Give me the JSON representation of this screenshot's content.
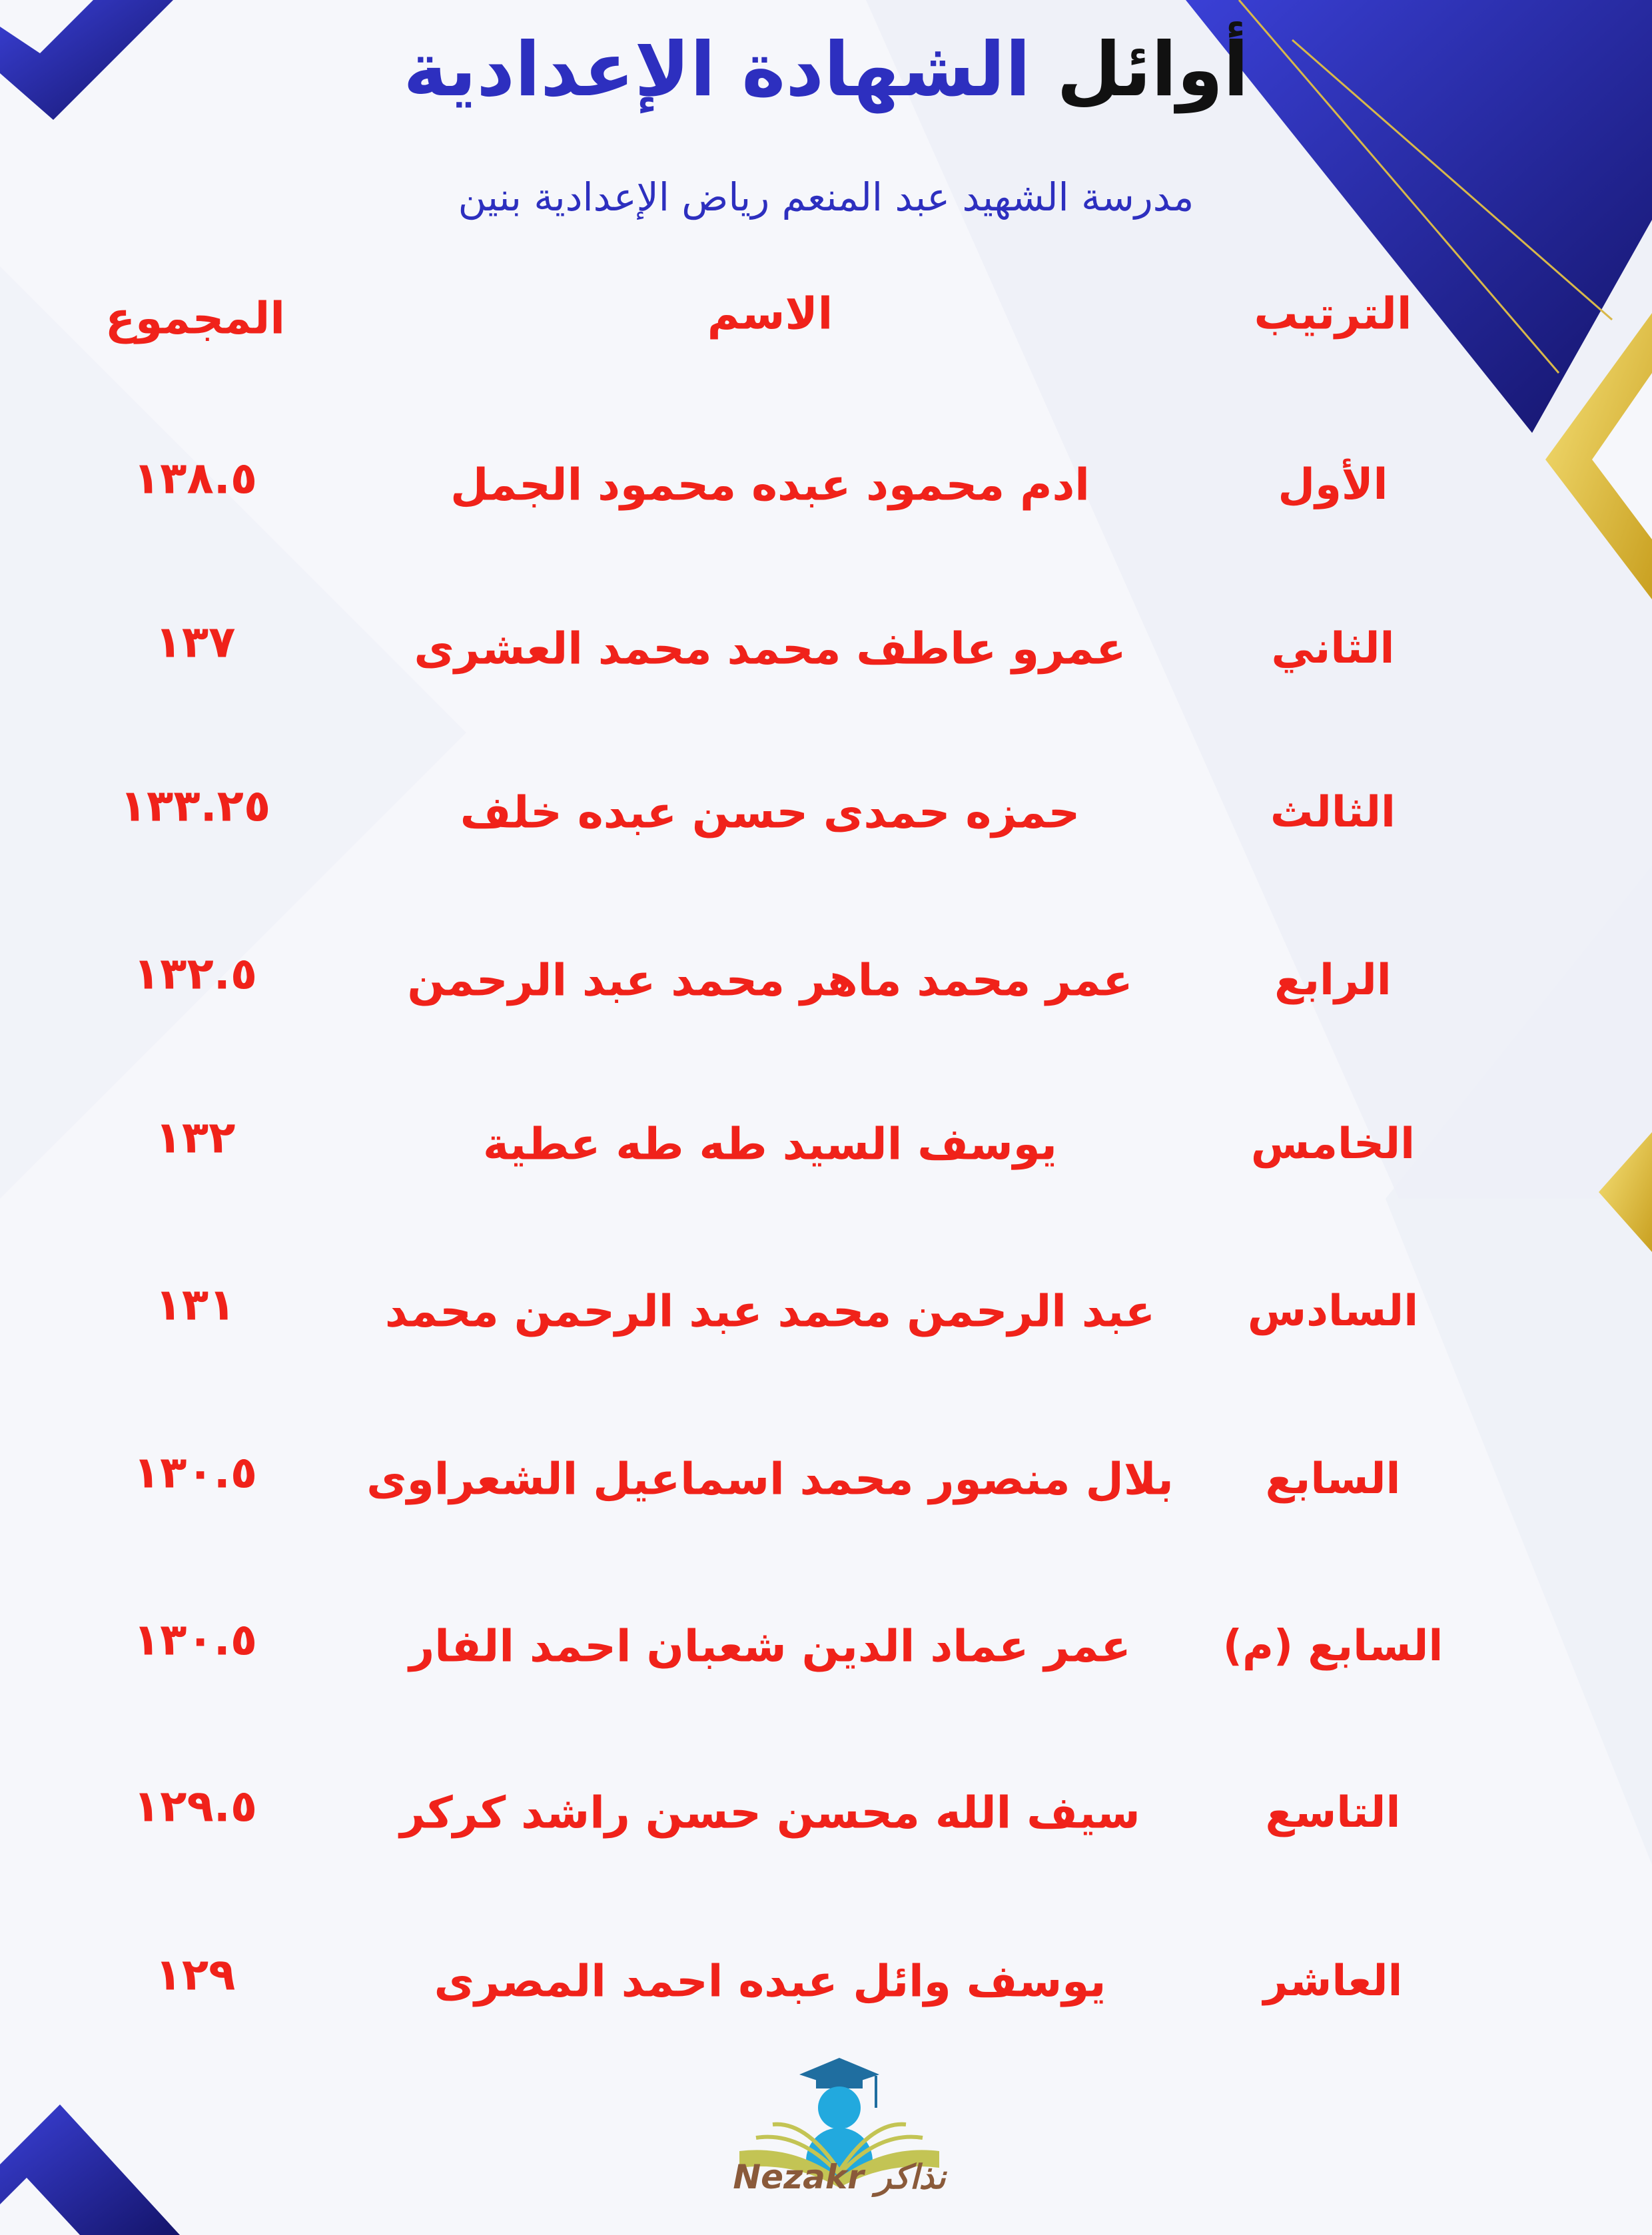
{
  "title": {
    "part1": "أوائل",
    "part2": "الشهادة الإعدادية"
  },
  "subtitle": "مدرسة الشهيد عبد المنعم رياض الإعدادية بنين",
  "headers": {
    "rank": "الترتيب",
    "name": "الاسم",
    "total": "المجموع"
  },
  "rows": [
    {
      "rank": "الأول",
      "name": "ادم محمود عبده محمود الجمل",
      "total": "١٣٨.٥"
    },
    {
      "rank": "الثاني",
      "name": "عمرو عاطف محمد محمد العشرى",
      "total": "١٣٧"
    },
    {
      "rank": "الثالث",
      "name": "حمزه حمدى حسن عبده خلف",
      "total": "١٣٣.٢٥"
    },
    {
      "rank": "الرابع",
      "name": "عمر محمد ماهر محمد عبد الرحمن",
      "total": "١٣٢.٥"
    },
    {
      "rank": "الخامس",
      "name": "يوسف السيد طه طه عطية",
      "total": "١٣٢"
    },
    {
      "rank": "السادس",
      "name": "عبد الرحمن محمد عبد الرحمن محمد",
      "total": "١٣١"
    },
    {
      "rank": "السابع",
      "name": "بلال منصور محمد اسماعيل الشعراوى",
      "total": "١٣٠.٥"
    },
    {
      "rank": "السابع (م)",
      "name": "عمر عماد الدين شعبان احمد الفار",
      "total": "١٣٠.٥"
    },
    {
      "rank": "التاسع",
      "name": "سيف الله محسن حسن راشد كركر",
      "total": "١٢٩.٥"
    },
    {
      "rank": "العاشر",
      "name": "يوسف وائل عبده احمد المصرى",
      "total": "١٢٩"
    }
  ],
  "logo": {
    "text": "Nezakr نذاكر",
    "icon": "graduate-book-logo"
  },
  "colors": {
    "title_black": "#111111",
    "title_blue": "#2d2fbf",
    "table_text": "#f0221a",
    "accent_blue": "#2a2fb8",
    "accent_gold": "#e8c53a"
  }
}
